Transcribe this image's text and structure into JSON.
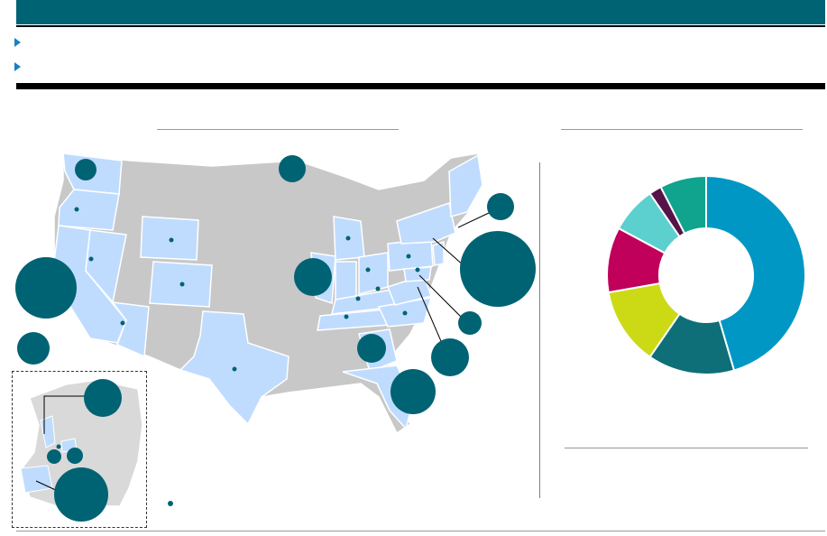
{
  "header": {
    "title": ""
  },
  "bullets": [
    "",
    ""
  ],
  "map_panel": {
    "title": ""
  },
  "chart_panel": {
    "title": "",
    "footnote": ""
  },
  "legend": {
    "label": ""
  },
  "colors": {
    "brand": "#006373",
    "state_highlight": "#bfdcff",
    "state_other": "#c8c8c8",
    "bullet": "#1a7fc6"
  },
  "chart_data": {
    "type": "pie",
    "donut": true,
    "title": "",
    "slices": [
      {
        "label": "",
        "value": 45.0,
        "color": "#0097c4"
      },
      {
        "label": "",
        "value": 14.0,
        "color": "#0e6f78"
      },
      {
        "label": "",
        "value": 12.5,
        "color": "#cbda15"
      },
      {
        "label": "",
        "value": 10.5,
        "color": "#c0005a"
      },
      {
        "label": "",
        "value": 7.5,
        "color": "#5ccfcf"
      },
      {
        "label": "",
        "value": 2.0,
        "color": "#56134a"
      },
      {
        "label": "",
        "value": 7.5,
        "color": "#10a38e"
      }
    ]
  }
}
